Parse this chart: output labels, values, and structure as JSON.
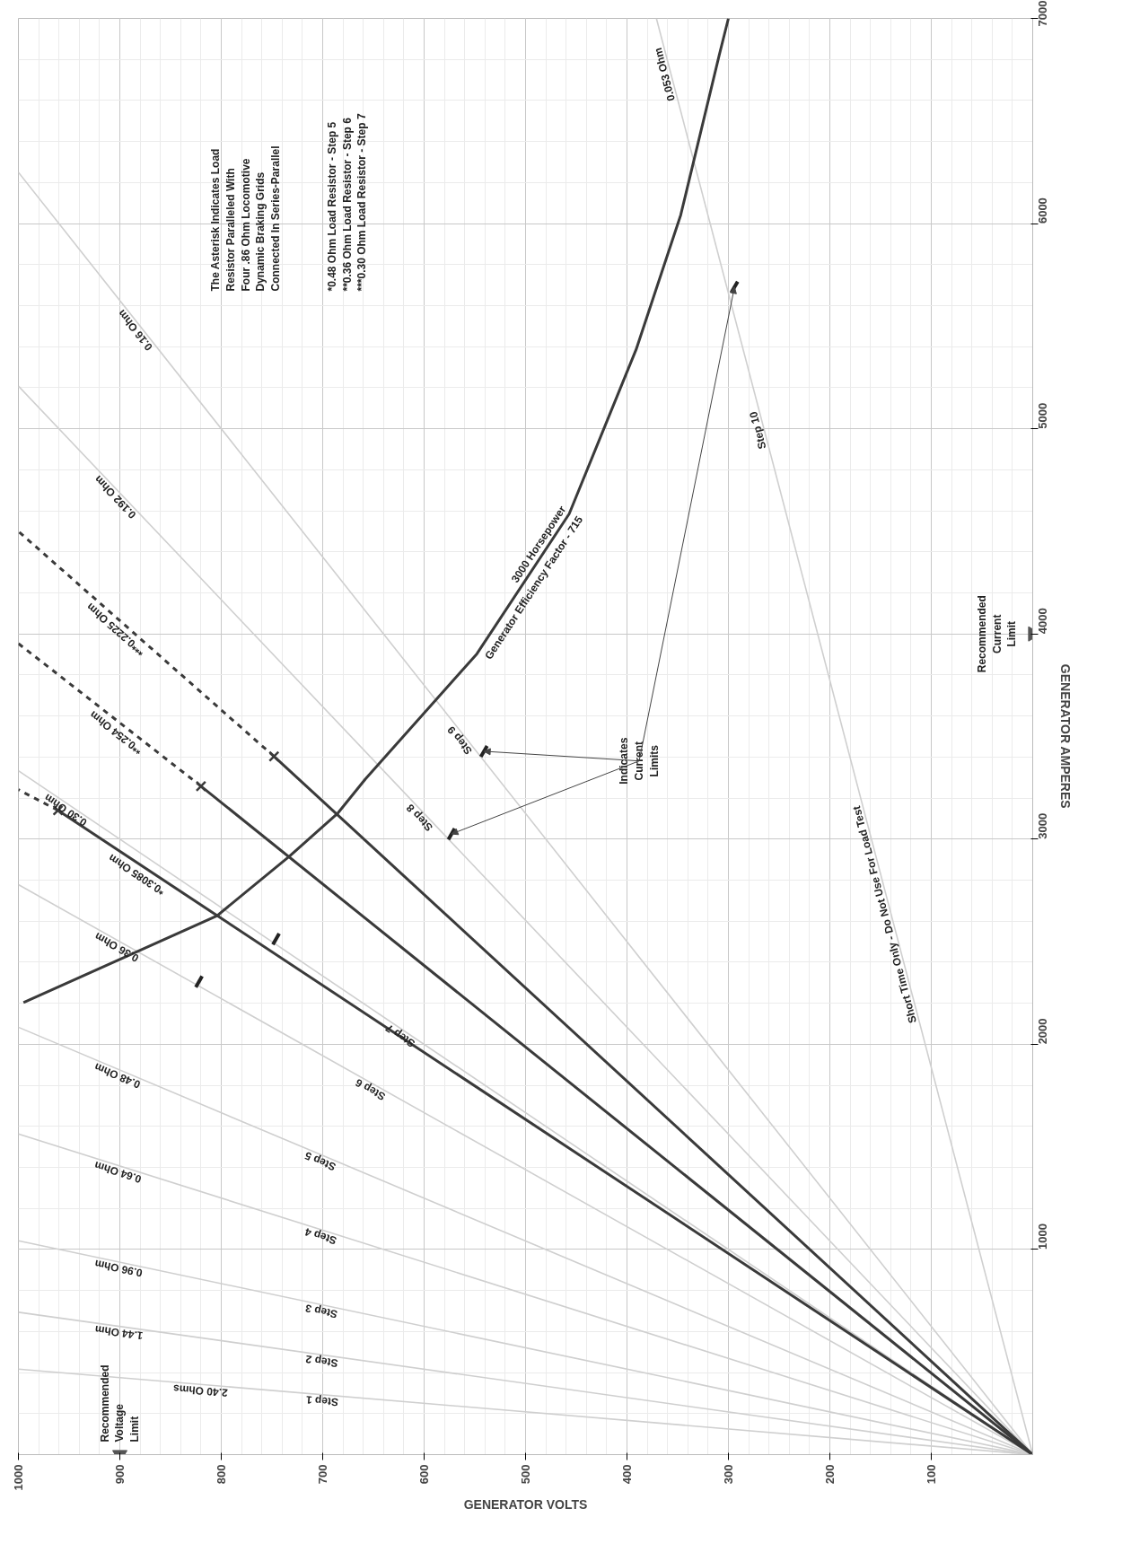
{
  "chart_data": {
    "type": "line",
    "xlabel": "GENERATOR VOLTS",
    "ylabel": "GENERATOR AMPERES",
    "xlim": [
      1000,
      0
    ],
    "xticks": [
      1000,
      900,
      800,
      700,
      600,
      500,
      400,
      300,
      200,
      100
    ],
    "ylim": [
      0,
      7000
    ],
    "yticks": [
      1000,
      2000,
      3000,
      4000,
      5000,
      6000,
      7000
    ],
    "grid": true,
    "series": [
      {
        "color": "#cfcfcf",
        "x": [
          0,
          1000
        ],
        "values": [
          0,
          417
        ]
      },
      {
        "color": "#cfcfcf",
        "x": [
          0,
          1000
        ],
        "values": [
          0,
          694
        ]
      },
      {
        "color": "#cfcfcf",
        "x": [
          0,
          1000
        ],
        "values": [
          0,
          1042
        ]
      },
      {
        "color": "#cfcfcf",
        "x": [
          0,
          1000
        ],
        "values": [
          0,
          1563
        ]
      },
      {
        "color": "#cfcfcf",
        "x": [
          0,
          1000
        ],
        "values": [
          0,
          2083
        ]
      },
      {
        "color": "#cfcfcf",
        "x": [
          0,
          1000
        ],
        "values": [
          0,
          2778
        ]
      },
      {
        "color": "#cfcfcf",
        "x": [
          0,
          1000
        ],
        "values": [
          0,
          3333
        ]
      },
      {
        "color": "#cfcfcf",
        "x": [
          0,
          1000
        ],
        "values": [
          0,
          5208
        ]
      },
      {
        "color": "#cfcfcf",
        "x": [
          0,
          1000
        ],
        "values": [
          0,
          6250
        ]
      },
      {
        "color": "#cfcfcf",
        "x": [
          0,
          371
        ],
        "values": [
          0,
          7000
        ]
      },
      {
        "color": "#3a3a3a",
        "line_style": "solid",
        "x": [
          0,
          961
        ],
        "values": [
          0,
          3140
        ]
      },
      {
        "color": "#3a3a3a",
        "line_style": "dashed",
        "x": [
          961,
          1000
        ],
        "values": [
          3140,
          3241
        ]
      },
      {
        "color": "#3a3a3a",
        "line_style": "solid",
        "x": [
          0,
          820
        ],
        "values": [
          0,
          3258
        ]
      },
      {
        "color": "#3a3a3a",
        "line_style": "dashed",
        "x": [
          820,
          1000
        ],
        "values": [
          3258,
          3953
        ]
      },
      {
        "color": "#3a3a3a",
        "line_style": "solid",
        "x": [
          0,
          748
        ],
        "values": [
          0,
          3403
        ]
      },
      {
        "color": "#3a3a3a",
        "line_style": "dashed",
        "x": [
          748,
          1000
        ],
        "values": [
          3403,
          4500
        ]
      },
      {
        "color": "#3a3a3a",
        "x": [
          995,
          804,
          733,
          685,
          658,
          548,
          457,
          391,
          347,
          309,
          300
        ],
        "values": [
          2203,
          2627,
          2915,
          3127,
          3292,
          3903,
          4585,
          5386,
          6042,
          6822,
          7000
        ]
      },
      {
        "type": "scatter",
        "marker": "cross",
        "color": "#3a3a3a",
        "x": [
          961,
          820,
          748
        ],
        "values": [
          3140,
          3258,
          3403
        ]
      },
      {
        "type": "scatter",
        "color": "#222222",
        "x": [
          822,
          746
        ],
        "values": [
          2305,
          2513
        ]
      },
      {
        "type": "scatter",
        "color": "#222222",
        "x": [
          573,
          541,
          294
        ],
        "values": [
          3025,
          3428,
          5691
        ]
      },
      {
        "type": "scatter",
        "marker": "triangle",
        "name": "Recommended Voltage Limit",
        "color": "#555555",
        "x": [
          900
        ],
        "values": [
          0
        ]
      },
      {
        "type": "scatter",
        "marker": "triangle",
        "name": "Recommended Current Limit",
        "color": "#555555",
        "x": [
          0
        ],
        "values": [
          4000
        ]
      }
    ],
    "annotations": [
      {
        "text": "2.40 Ohms",
        "x": 820,
        "y": 342
      },
      {
        "text": "Step 1",
        "x": 700,
        "y": 292
      },
      {
        "text": "1.44 Ohm",
        "x": 900,
        "y": 625
      },
      {
        "text": "Step 2",
        "x": 700,
        "y": 486
      },
      {
        "text": "0.96 Ohm",
        "x": 900,
        "y": 938
      },
      {
        "text": "Step 3",
        "x": 700,
        "y": 729
      },
      {
        "text": "0.64 Ohm",
        "x": 900,
        "y": 1406
      },
      {
        "text": "Step 4",
        "x": 700,
        "y": 1094
      },
      {
        "text": "0.48 Ohm",
        "x": 900,
        "y": 1875
      },
      {
        "text": "Step 5",
        "x": 700,
        "y": 1458
      },
      {
        "text": "0.36 Ohm",
        "x": 900,
        "y": 2500
      },
      {
        "text": "Step 6",
        "x": 650,
        "y": 1806
      },
      {
        "text": "0.30 Ohm",
        "x": 950,
        "y": 3167
      },
      {
        "text": "Step 7",
        "x": 620,
        "y": 2067
      },
      {
        "text": "0.192 Ohm",
        "x": 900,
        "y": 4688
      },
      {
        "text": "Step 8",
        "x": 600,
        "y": 3125
      },
      {
        "text": "0.16 Ohm",
        "x": 880,
        "y": 5500
      },
      {
        "text": "Step 9",
        "x": 560,
        "y": 3500
      },
      {
        "text": "0.053 Ohm",
        "x": 357,
        "y": 6735
      },
      {
        "text": "Step 10",
        "x": 265,
        "y": 5000
      },
      {
        "text": "*0.3085 Ohm",
        "x": 880,
        "y": 2853
      },
      {
        "text": "**0.254 Ohm",
        "x": 900,
        "y": 3543
      },
      {
        "text": "***0.2225 Ohm",
        "x": 900,
        "y": 4045
      },
      {
        "text": "3000 Horsepower",
        "x": 482,
        "y": 4420
      },
      {
        "text": "Short Time Only - Do Not Use For Load Test",
        "x": 140,
        "y": 2640
      },
      "The Asterisk Indicates Load\nResistor Paralleled With\nFour .86 Ohm Locomotive\nDynamic Braking Grids\nConnected In Series-Parallel",
      "*0.48 Ohm Load Resistor - Step 5\n**0.36 Ohm Load Resistor - Step 6\n***0.30 Ohm Load Resistor - Step 7",
      "Generator Efficiency Factor - 715",
      {
        "text": "Indicates Current Limits",
        "x": 573,
        "y": 3025
      }
    ]
  }
}
